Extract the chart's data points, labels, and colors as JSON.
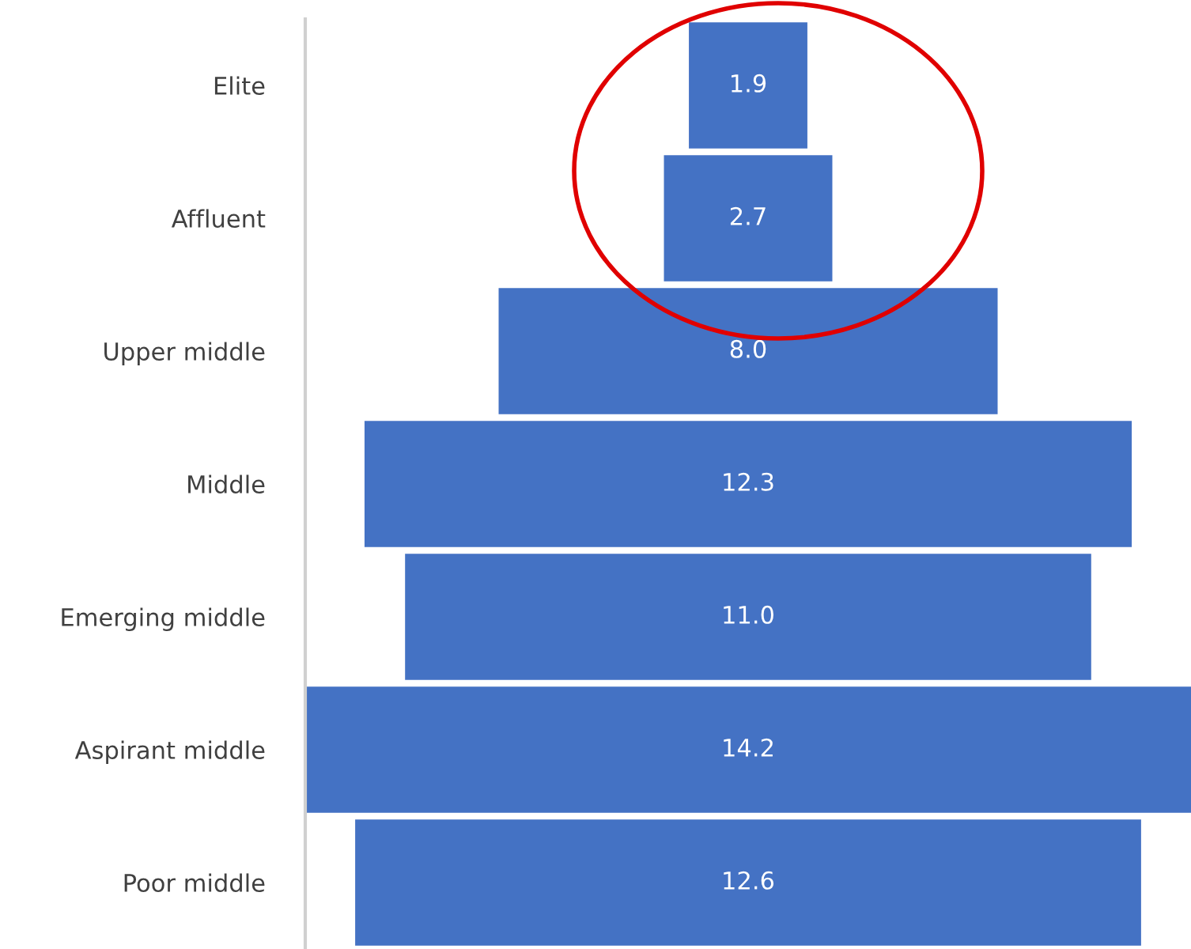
{
  "chart_data": {
    "type": "other",
    "categories": [
      "Elite",
      "Affluent",
      "Upper middle",
      "Middle",
      "Emerging middle",
      "Aspirant middle",
      "Poor middle"
    ],
    "values": [
      1.9,
      2.7,
      8.0,
      12.3,
      11.0,
      14.2,
      12.6
    ],
    "value_labels": [
      "1.9",
      "2.7",
      "8.0",
      "12.3",
      "11.0",
      "14.2",
      "12.6"
    ],
    "color": "#4472c4"
  }
}
